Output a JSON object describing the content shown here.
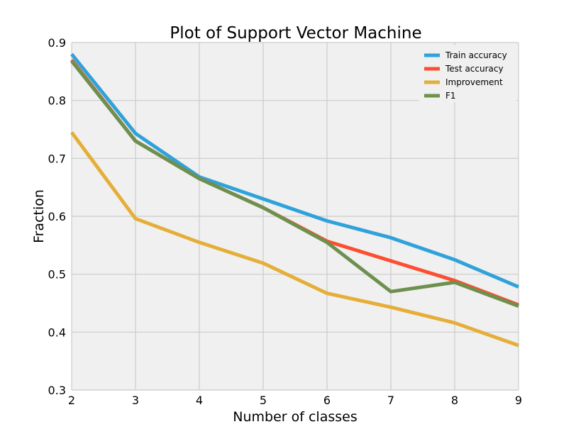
{
  "chart_data": {
    "type": "line",
    "title": "Plot of Support Vector Machine",
    "xlabel": "Number of classes",
    "ylabel": "Fraction",
    "xlim": [
      2,
      9
    ],
    "ylim": [
      0.3,
      0.9
    ],
    "xticks": [
      2,
      3,
      4,
      5,
      6,
      7,
      8,
      9
    ],
    "yticks": [
      0.3,
      0.4,
      0.5,
      0.6,
      0.7,
      0.8,
      0.9
    ],
    "grid": true,
    "legend_position": "top-right",
    "x": [
      2,
      3,
      4,
      5,
      6,
      7,
      8,
      9
    ],
    "series": [
      {
        "name": "Train accuracy",
        "color": "#30a2da",
        "values": [
          0.88,
          0.743,
          0.668,
          0.63,
          0.592,
          0.563,
          0.525,
          0.478
        ]
      },
      {
        "name": "Test accuracy",
        "color": "#fc4f30",
        "values": [
          0.87,
          0.73,
          0.665,
          0.615,
          0.557,
          0.523,
          0.489,
          0.447
        ]
      },
      {
        "name": "Improvement",
        "color": "#e5ae38",
        "values": [
          0.745,
          0.596,
          0.555,
          0.519,
          0.467,
          0.443,
          0.416,
          0.377
        ]
      },
      {
        "name": "F1",
        "color": "#6d904f",
        "values": [
          0.868,
          0.73,
          0.665,
          0.615,
          0.555,
          0.47,
          0.486,
          0.445
        ]
      }
    ]
  }
}
